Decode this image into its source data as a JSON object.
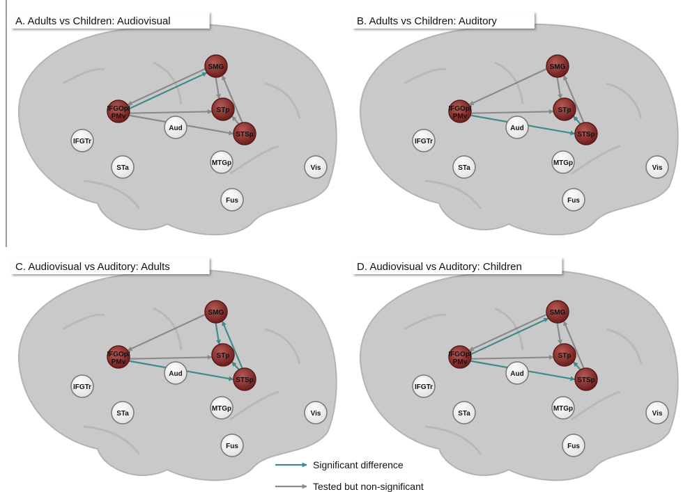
{
  "nodes": [
    {
      "label": "SMG",
      "active": true
    },
    {
      "label": "IFGOp/PMv",
      "active": true
    },
    {
      "label": "STp",
      "active": true
    },
    {
      "label": "STSp",
      "active": true
    },
    {
      "label": "Aud",
      "active": false
    },
    {
      "label": "IFGTr",
      "active": false
    },
    {
      "label": "STa",
      "active": false
    },
    {
      "label": "MTGp",
      "active": false
    },
    {
      "label": "Vis",
      "active": false
    },
    {
      "label": "Fus",
      "active": false
    }
  ],
  "panels": [
    {
      "title": "A. Adults vs Children: Audiovisual",
      "edges": [
        {
          "from": "IFGOp/PMv",
          "to": "SMG",
          "significant": true
        },
        {
          "from": "SMG",
          "to": "IFGOp/PMv",
          "significant": false
        },
        {
          "from": "IFGOp/PMv",
          "to": "STp",
          "significant": false
        },
        {
          "from": "IFGOp/PMv",
          "to": "STSp",
          "significant": false
        },
        {
          "from": "SMG",
          "to": "STp",
          "significant": false
        },
        {
          "from": "STSp",
          "to": "SMG",
          "significant": false
        },
        {
          "from": "STSp",
          "to": "STp",
          "significant": false
        }
      ]
    },
    {
      "title": "B. Adults vs Children: Auditory",
      "edges": [
        {
          "from": "IFGOp/PMv",
          "to": "STSp",
          "significant": true
        },
        {
          "from": "STSp",
          "to": "STp",
          "significant": true
        },
        {
          "from": "SMG",
          "to": "IFGOp/PMv",
          "significant": false
        },
        {
          "from": "IFGOp/PMv",
          "to": "STp",
          "significant": false
        },
        {
          "from": "SMG",
          "to": "STp",
          "significant": false
        },
        {
          "from": "STSp",
          "to": "SMG",
          "significant": false
        }
      ]
    },
    {
      "title": "C. Audiovisual vs Auditory: Adults",
      "edges": [
        {
          "from": "IFGOp/PMv",
          "to": "STSp",
          "significant": true
        },
        {
          "from": "SMG",
          "to": "STp",
          "significant": true
        },
        {
          "from": "STSp",
          "to": "SMG",
          "significant": true
        },
        {
          "from": "STSp",
          "to": "STp",
          "significant": true
        },
        {
          "from": "SMG",
          "to": "IFGOp/PMv",
          "significant": false
        },
        {
          "from": "IFGOp/PMv",
          "to": "STp",
          "significant": false
        }
      ]
    },
    {
      "title": "D. Audiovisual vs Auditory: Children",
      "edges": [
        {
          "from": "IFGOp/PMv",
          "to": "SMG",
          "significant": true
        },
        {
          "from": "IFGOp/PMv",
          "to": "STSp",
          "significant": true
        },
        {
          "from": "STSp",
          "to": "STp",
          "significant": true
        },
        {
          "from": "SMG",
          "to": "IFGOp/PMv",
          "significant": false
        },
        {
          "from": "IFGOp/PMv",
          "to": "STp",
          "significant": false
        },
        {
          "from": "SMG",
          "to": "STp",
          "significant": false
        },
        {
          "from": "STSp",
          "to": "SMG",
          "significant": false
        }
      ]
    }
  ],
  "legend": [
    {
      "label": "Significant difference",
      "color": "#3e8b8c"
    },
    {
      "label": "Tested but non-significant",
      "color": "#8a8a8a"
    }
  ]
}
